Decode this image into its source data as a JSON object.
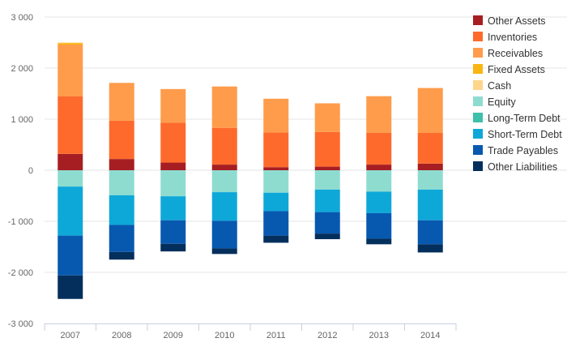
{
  "chart_data": {
    "type": "bar",
    "stacked": true,
    "categories": [
      "2007",
      "2008",
      "2009",
      "2010",
      "2011",
      "2012",
      "2013",
      "2014"
    ],
    "ylim": [
      -3000,
      3000
    ],
    "yticks": [
      -3000,
      -2000,
      -1000,
      0,
      1000,
      2000,
      3000
    ],
    "ytick_labels": [
      "-3 000",
      "-2 000",
      "-1 000",
      "0",
      "1 000",
      "2 000",
      "3 000"
    ],
    "grid": true,
    "legend_position": "right",
    "series": [
      {
        "name": "Other Assets",
        "color": "#a61e22",
        "values": [
          320,
          220,
          150,
          110,
          60,
          70,
          110,
          130
        ]
      },
      {
        "name": "Inventories",
        "color": "#fe6a2c",
        "values": [
          1130,
          750,
          780,
          720,
          680,
          680,
          620,
          600
        ]
      },
      {
        "name": "Receivables",
        "color": "#fe9c4b",
        "values": [
          1010,
          740,
          660,
          810,
          660,
          560,
          720,
          880
        ]
      },
      {
        "name": "Fixed Assets",
        "color": "#f9b512",
        "values": [
          30,
          0,
          0,
          0,
          0,
          0,
          0,
          0
        ]
      },
      {
        "name": "Cash",
        "color": "#fed58a",
        "values": [
          10,
          0,
          0,
          0,
          0,
          0,
          0,
          0
        ]
      },
      {
        "name": "Equity",
        "color": "#8edcd0",
        "values": [
          -320,
          -490,
          -510,
          -430,
          -440,
          -380,
          -420,
          -380
        ]
      },
      {
        "name": "Long-Term Debt",
        "color": "#3ec0aa",
        "values": [
          0,
          0,
          0,
          0,
          0,
          0,
          0,
          0
        ]
      },
      {
        "name": "Short-Term Debt",
        "color": "#0ea8d8",
        "values": [
          -960,
          -580,
          -470,
          -560,
          -360,
          -440,
          -420,
          -600
        ]
      },
      {
        "name": "Trade Payables",
        "color": "#0759b0",
        "values": [
          -780,
          -530,
          -460,
          -540,
          -480,
          -420,
          -500,
          -470
        ]
      },
      {
        "name": "Other Liabilities",
        "color": "#042f5c",
        "values": [
          -460,
          -150,
          -150,
          -110,
          -140,
          -110,
          -110,
          -160
        ]
      }
    ]
  }
}
